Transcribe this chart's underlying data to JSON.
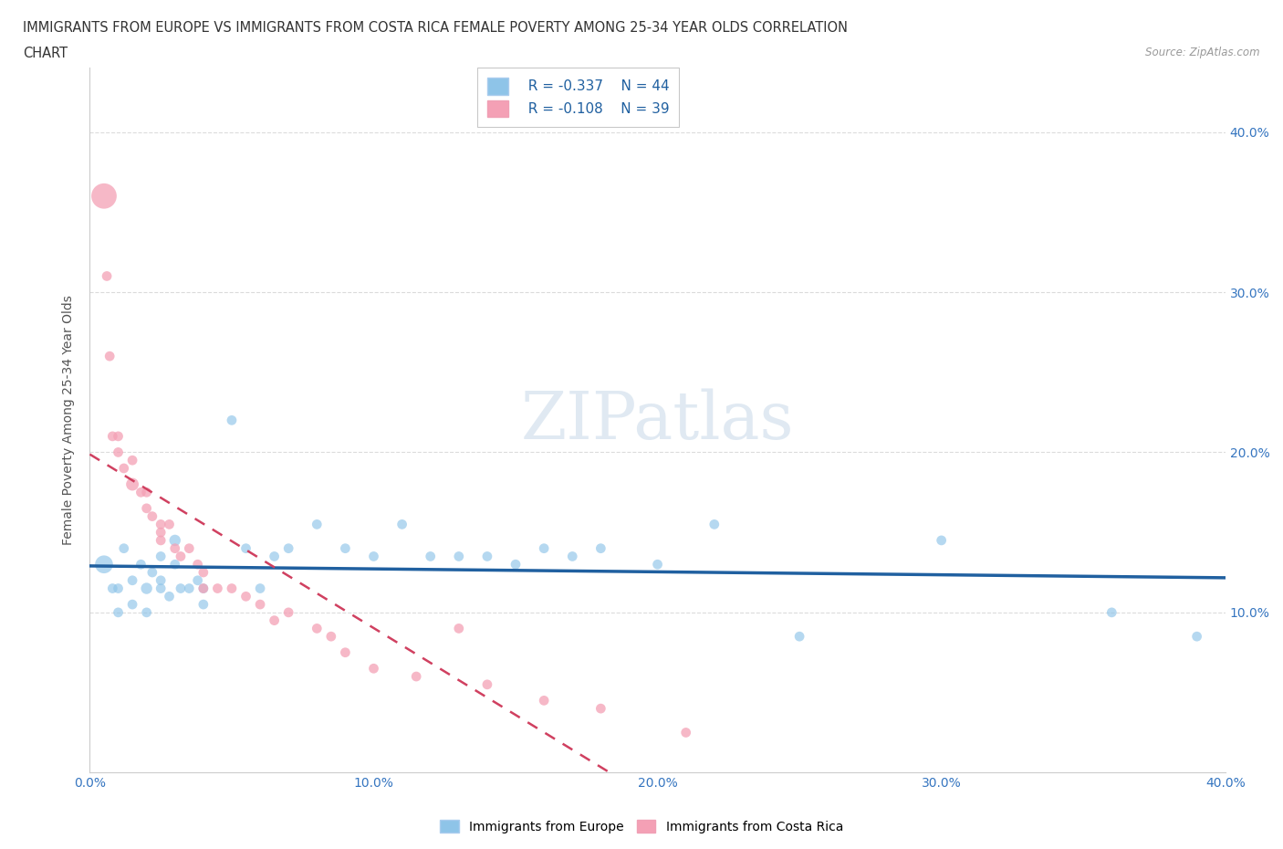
{
  "title_line1": "IMMIGRANTS FROM EUROPE VS IMMIGRANTS FROM COSTA RICA FEMALE POVERTY AMONG 25-34 YEAR OLDS CORRELATION",
  "title_line2": "CHART",
  "source_text": "Source: ZipAtlas.com",
  "ylabel": "Female Poverty Among 25-34 Year Olds",
  "xlim": [
    0.0,
    0.4
  ],
  "ylim": [
    0.0,
    0.44
  ],
  "x_ticks": [
    0.0,
    0.05,
    0.1,
    0.15,
    0.2,
    0.25,
    0.3,
    0.35,
    0.4
  ],
  "x_tick_labels": [
    "0.0%",
    "",
    "10.0%",
    "",
    "20.0%",
    "",
    "30.0%",
    "",
    "40.0%"
  ],
  "y_ticks": [
    0.1,
    0.2,
    0.3,
    0.4
  ],
  "y_tick_labels": [
    "10.0%",
    "20.0%",
    "30.0%",
    "40.0%"
  ],
  "color_europe": "#8ec4e8",
  "color_costarica": "#f4a0b5",
  "trendline_europe_color": "#2060a0",
  "trendline_costarica_color": "#d04060",
  "legend_R_europe": "R = -0.337",
  "legend_N_europe": "N = 44",
  "legend_R_costarica": "R = -0.108",
  "legend_N_costarica": "N = 39",
  "watermark": "ZIPatlas",
  "europe_x": [
    0.005,
    0.008,
    0.01,
    0.01,
    0.012,
    0.015,
    0.015,
    0.018,
    0.02,
    0.02,
    0.022,
    0.025,
    0.025,
    0.025,
    0.028,
    0.03,
    0.03,
    0.032,
    0.035,
    0.038,
    0.04,
    0.04,
    0.05,
    0.055,
    0.06,
    0.065,
    0.07,
    0.08,
    0.09,
    0.1,
    0.11,
    0.12,
    0.13,
    0.14,
    0.15,
    0.16,
    0.17,
    0.18,
    0.2,
    0.22,
    0.25,
    0.3,
    0.36,
    0.39
  ],
  "europe_y": [
    0.13,
    0.115,
    0.115,
    0.1,
    0.14,
    0.12,
    0.105,
    0.13,
    0.115,
    0.1,
    0.125,
    0.12,
    0.115,
    0.135,
    0.11,
    0.145,
    0.13,
    0.115,
    0.115,
    0.12,
    0.115,
    0.105,
    0.22,
    0.14,
    0.115,
    0.135,
    0.14,
    0.155,
    0.14,
    0.135,
    0.155,
    0.135,
    0.135,
    0.135,
    0.13,
    0.14,
    0.135,
    0.14,
    0.13,
    0.155,
    0.085,
    0.145,
    0.1,
    0.085
  ],
  "europe_size": [
    200,
    60,
    60,
    60,
    60,
    60,
    60,
    60,
    80,
    60,
    60,
    60,
    60,
    60,
    60,
    80,
    60,
    60,
    60,
    60,
    60,
    60,
    60,
    60,
    60,
    60,
    60,
    60,
    60,
    60,
    60,
    60,
    60,
    60,
    60,
    60,
    60,
    60,
    60,
    60,
    60,
    60,
    60,
    60
  ],
  "costarica_x": [
    0.005,
    0.006,
    0.007,
    0.008,
    0.01,
    0.01,
    0.012,
    0.015,
    0.015,
    0.018,
    0.02,
    0.02,
    0.022,
    0.025,
    0.025,
    0.025,
    0.028,
    0.03,
    0.032,
    0.035,
    0.038,
    0.04,
    0.04,
    0.045,
    0.05,
    0.055,
    0.06,
    0.065,
    0.07,
    0.08,
    0.085,
    0.09,
    0.1,
    0.115,
    0.13,
    0.14,
    0.16,
    0.18,
    0.21
  ],
  "costarica_y": [
    0.36,
    0.31,
    0.26,
    0.21,
    0.21,
    0.2,
    0.19,
    0.195,
    0.18,
    0.175,
    0.175,
    0.165,
    0.16,
    0.155,
    0.15,
    0.145,
    0.155,
    0.14,
    0.135,
    0.14,
    0.13,
    0.125,
    0.115,
    0.115,
    0.115,
    0.11,
    0.105,
    0.095,
    0.1,
    0.09,
    0.085,
    0.075,
    0.065,
    0.06,
    0.09,
    0.055,
    0.045,
    0.04,
    0.025
  ],
  "costarica_size": [
    400,
    60,
    60,
    60,
    60,
    60,
    60,
    60,
    100,
    60,
    60,
    60,
    60,
    60,
    60,
    60,
    60,
    60,
    60,
    60,
    60,
    60,
    60,
    60,
    60,
    60,
    60,
    60,
    60,
    60,
    60,
    60,
    60,
    60,
    60,
    60,
    60,
    60,
    60
  ]
}
